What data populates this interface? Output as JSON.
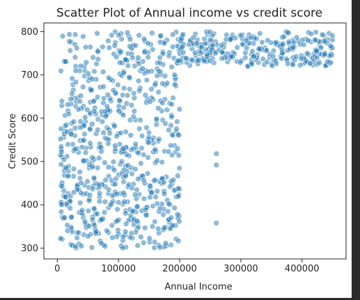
{
  "chart_data": {
    "type": "scatter",
    "title": "Scatter Plot of Annual income vs credit score",
    "xlabel": "Annual Income",
    "ylabel": "Credit Score",
    "xlim": [
      -22000,
      472000
    ],
    "ylim": [
      275,
      820
    ],
    "xticks": [
      0,
      100000,
      200000,
      300000,
      400000
    ],
    "yticks": [
      300,
      400,
      500,
      600,
      700,
      800
    ],
    "xtick_labels": [
      "0",
      "100000",
      "200000",
      "300000",
      "400000"
    ],
    "ytick_labels": [
      "300",
      "400",
      "500",
      "600",
      "700",
      "800"
    ],
    "grid": false,
    "legend": false,
    "point_color": "#1f77b4",
    "point_opacity": 0.5,
    "clusters": [
      {
        "x_range": [
          5000,
          200000
        ],
        "y_range": [
          300,
          650
        ],
        "count": 530
      },
      {
        "x_range": [
          5000,
          200000
        ],
        "y_range": [
          650,
          800
        ],
        "count": 170
      },
      {
        "x_range": [
          195000,
          450000
        ],
        "y_range": [
          720,
          800
        ],
        "count": 280
      }
    ],
    "points": [
      {
        "x": 260000,
        "y": 518
      },
      {
        "x": 260000,
        "y": 492
      },
      {
        "x": 260000,
        "y": 358
      }
    ]
  }
}
